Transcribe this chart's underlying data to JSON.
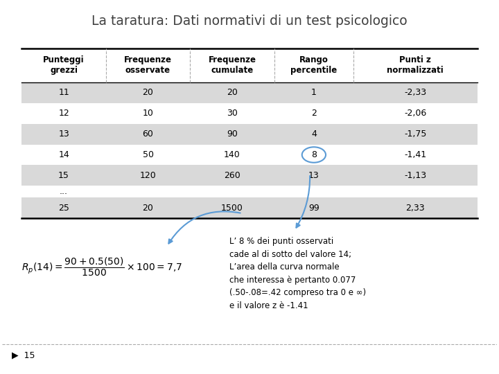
{
  "title": "La taratura: Dati normativi di un test psicologico",
  "col_headers": [
    "Punteggi\ngrezzi",
    "Frequenze\nosservate",
    "Frequenze\ncumulate",
    "Rango\npercentile",
    "Punti z\nnormalizzati"
  ],
  "rows": [
    [
      "11",
      "20",
      "20",
      "1",
      "-2,33"
    ],
    [
      "12",
      "10",
      "30",
      "2",
      "-2,06"
    ],
    [
      "13",
      "60",
      "90",
      "4",
      "-1,75"
    ],
    [
      "14",
      "50",
      "140",
      "8",
      "-1,41"
    ],
    [
      "15",
      "120",
      "260",
      "13",
      "-1,13"
    ],
    [
      "...",
      "",
      "",
      "",
      ""
    ],
    [
      "25",
      "20",
      "1500",
      "99",
      "2,33"
    ]
  ],
  "shaded_rows": [
    0,
    2,
    4,
    6
  ],
  "row_shade_color": "#d9d9d9",
  "row_white_color": "#ffffff",
  "header_bg": "#ffffff",
  "title_color": "#404040",
  "text_color": "#000000",
  "annotation_text": "L’ 8 % dei punti osservati\ncade al di sotto del valore 14;\nL’area della curva normale\nche interessa è pertanto 0.077\n(.50-.08=.42 compreso tra 0 e ∞)\ne il valore z è -1.41",
  "arrow_color": "#5b9bd5",
  "circle_color": "#5b9bd5",
  "slide_number": "15",
  "bg_color": "#ffffff"
}
